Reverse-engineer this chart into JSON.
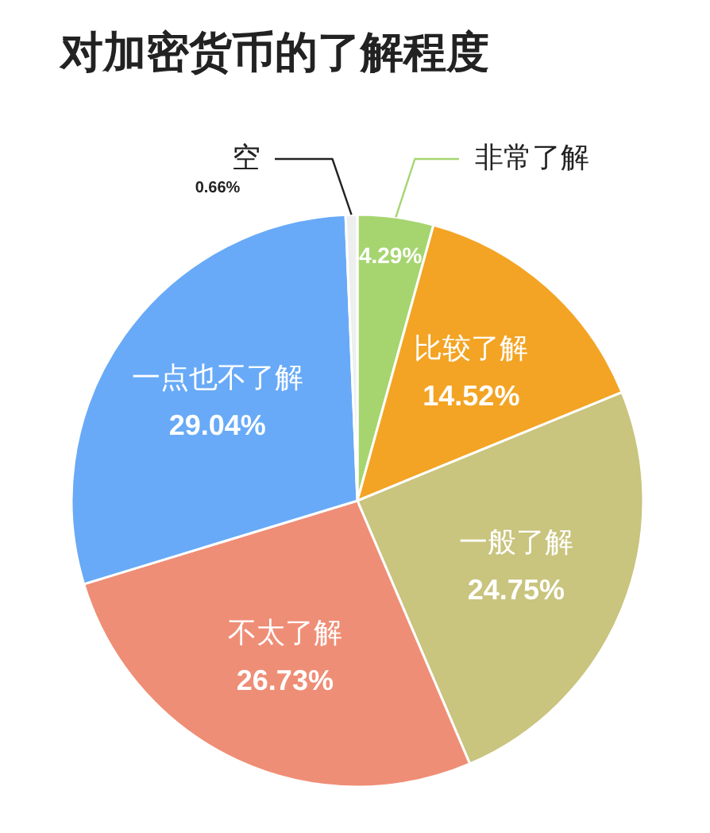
{
  "chart_data": {
    "type": "pie",
    "title": "对加密货币的了解程度",
    "categories": [
      "非常了解",
      "比较了解",
      "一般了解",
      "不太了解",
      "一点也不了解",
      "空"
    ],
    "values": [
      4.29,
      14.52,
      24.75,
      26.73,
      29.04,
      0.66
    ],
    "value_labels": [
      "4.29%",
      "14.52%",
      "24.75%",
      "26.73%",
      "29.04%",
      "0.66%"
    ],
    "colors": [
      "#a6d570",
      "#f3a424",
      "#c9c47e",
      "#ef8e76",
      "#68aaf7",
      "#eeeeee"
    ],
    "legend": false
  }
}
